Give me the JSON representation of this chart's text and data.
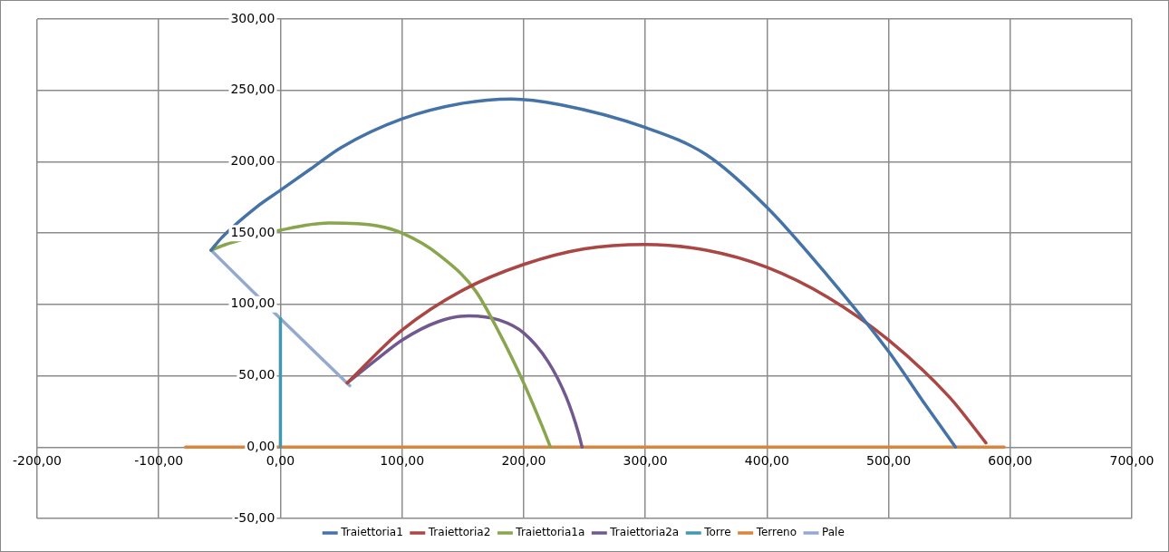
{
  "chart_data": {
    "type": "line",
    "marker": "none",
    "grid": true,
    "legend": "bottom",
    "xlim": [
      -200,
      700
    ],
    "ylim": [
      -50,
      300
    ],
    "xticks": [
      {
        "value": -200,
        "label": "-200,00"
      },
      {
        "value": -100,
        "label": "-100,00"
      },
      {
        "value": 0,
        "label": "0,00"
      },
      {
        "value": 100,
        "label": "100,00"
      },
      {
        "value": 200,
        "label": "200,00"
      },
      {
        "value": 300,
        "label": "300,00"
      },
      {
        "value": 400,
        "label": "400,00"
      },
      {
        "value": 500,
        "label": "500,00"
      },
      {
        "value": 600,
        "label": "600,00"
      },
      {
        "value": 700,
        "label": "700,00"
      }
    ],
    "yticks": [
      {
        "value": -50,
        "label": "-50,00"
      },
      {
        "value": 0,
        "label": "0,00"
      },
      {
        "value": 50,
        "label": "50,00"
      },
      {
        "value": 100,
        "label": "100,00"
      },
      {
        "value": 150,
        "label": "150,00"
      },
      {
        "value": 200,
        "label": "200,00"
      },
      {
        "value": 250,
        "label": "250,00"
      },
      {
        "value": 300,
        "label": "300,00"
      }
    ],
    "series": [
      {
        "name": "Traiettoria1",
        "color": "#4572a7",
        "x": [
          -57,
          -48,
          -20,
          0,
          25,
          50,
          100,
          150,
          190,
          230,
          300,
          350,
          400,
          450,
          500,
          530,
          555
        ],
        "values": [
          138,
          147,
          168,
          180,
          195,
          210,
          230,
          241,
          244,
          240,
          224,
          205,
          168,
          120,
          67,
          30,
          0
        ]
      },
      {
        "name": "Traiettoria2",
        "color": "#aa4643",
        "x": [
          55,
          100,
          150,
          200,
          250,
          300,
          350,
          400,
          450,
          500,
          550,
          580
        ],
        "values": [
          45,
          82,
          110,
          128,
          139,
          142,
          138,
          126,
          105,
          75,
          35,
          3
        ]
      },
      {
        "name": "Traiettoria1a",
        "color": "#89a54e",
        "x": [
          -57,
          -45,
          0,
          40,
          80,
          100,
          130,
          160,
          180,
          200,
          215,
          222
        ],
        "values": [
          138,
          142,
          152,
          157,
          155,
          150,
          135,
          110,
          80,
          45,
          15,
          0
        ]
      },
      {
        "name": "Traiettoria2a",
        "color": "#71588f",
        "x": [
          55,
          80,
          100,
          130,
          155,
          180,
          200,
          220,
          235,
          245,
          248
        ],
        "values": [
          45,
          62,
          75,
          88,
          92,
          89,
          80,
          60,
          35,
          10,
          0
        ]
      },
      {
        "name": "Torre",
        "color": "#4198af",
        "x": [
          0,
          0
        ],
        "values": [
          0,
          90
        ]
      },
      {
        "name": "Terreno",
        "color": "#db843d",
        "x": [
          -78,
          595
        ],
        "values": [
          0,
          0
        ]
      },
      {
        "name": "Pale",
        "color": "#93a9cf",
        "x": [
          -57,
          0,
          57
        ],
        "values": [
          138,
          90,
          43
        ]
      }
    ]
  }
}
